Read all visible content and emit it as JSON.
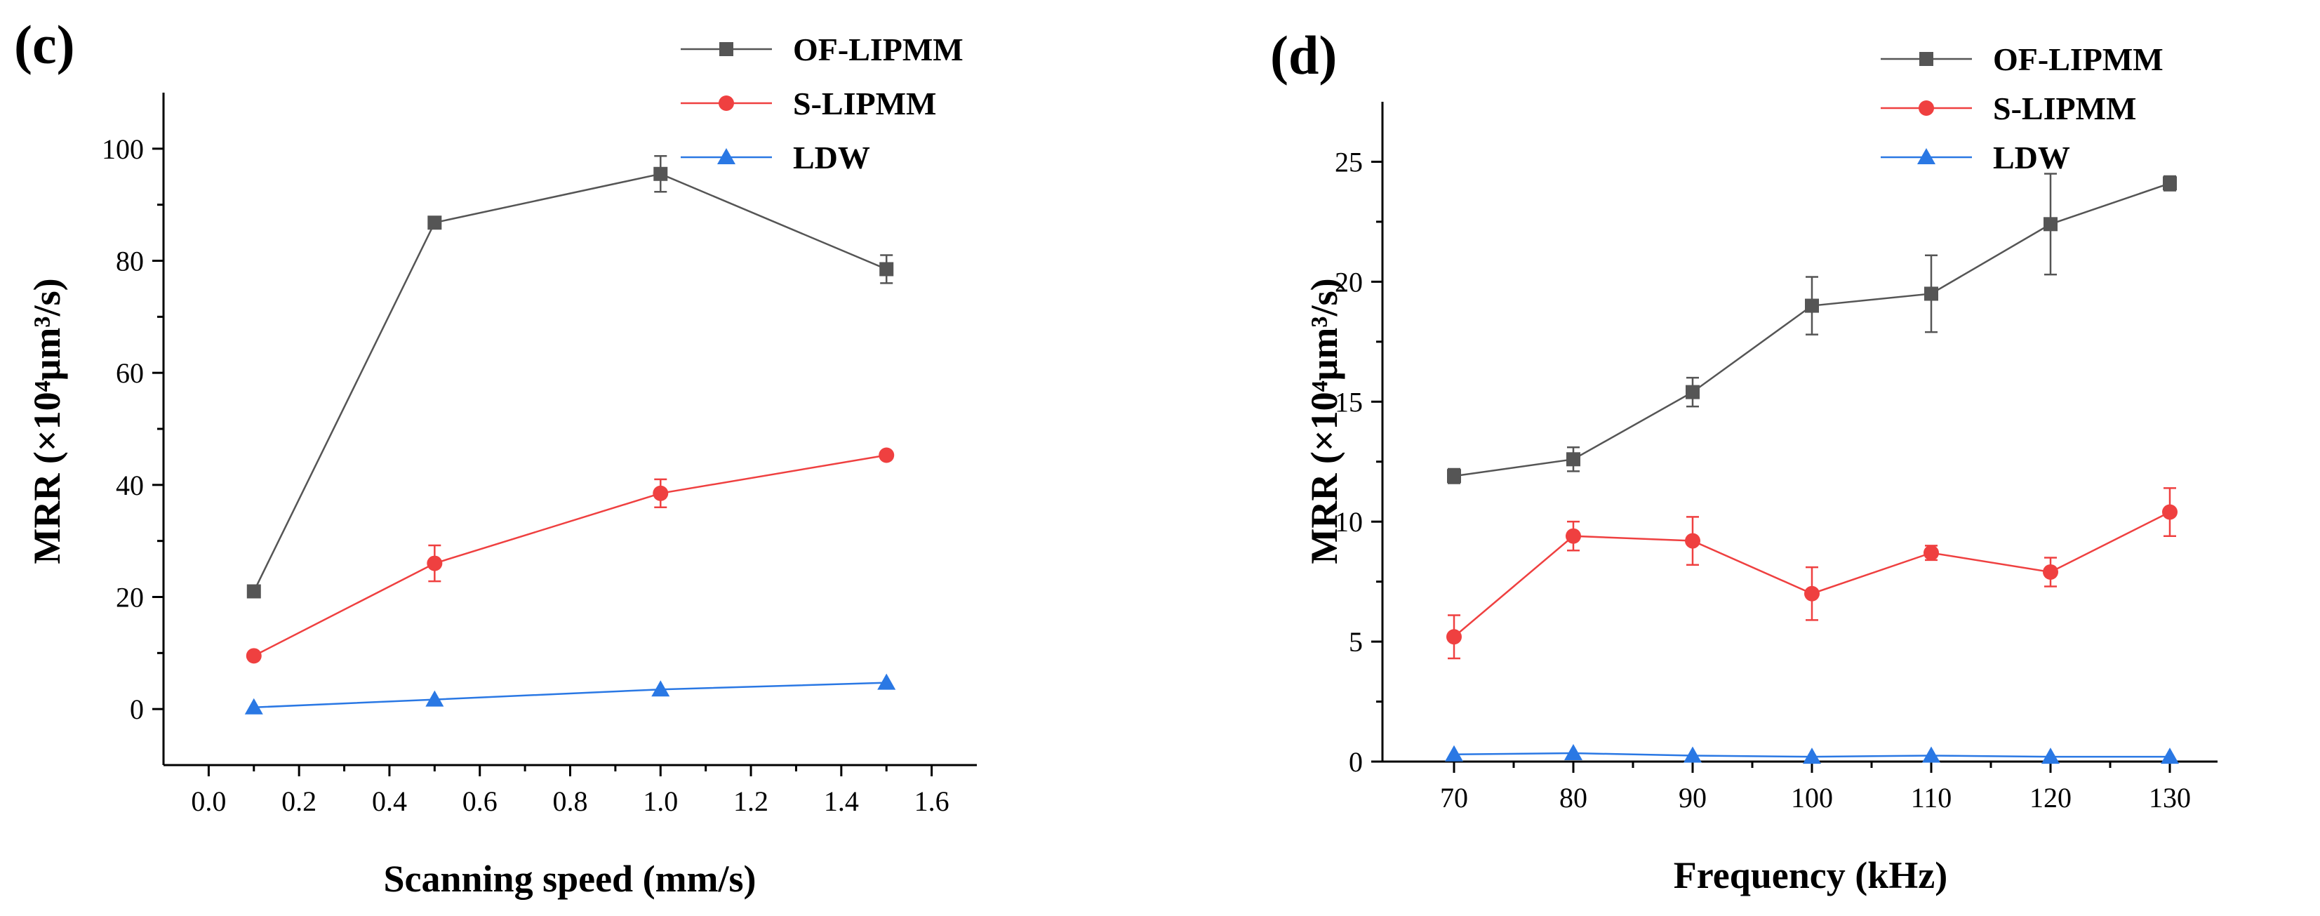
{
  "chart_data": [
    {
      "type": "line",
      "panel_label": "(c)",
      "xlabel": "Scanning speed (mm/s)",
      "ylabel": "MRR (×10⁴μm³/s)",
      "xlim": [
        -0.1,
        1.7
      ],
      "ylim": [
        -10,
        110
      ],
      "xticks": [
        0.0,
        0.2,
        0.4,
        0.6,
        0.8,
        1.0,
        1.2,
        1.4,
        1.6
      ],
      "xtick_labels": [
        "0.0",
        "0.2",
        "0.4",
        "0.6",
        "0.8",
        "1.0",
        "1.2",
        "1.4",
        "1.6"
      ],
      "yticks": [
        0,
        20,
        40,
        60,
        80,
        100
      ],
      "ytick_labels": [
        "0",
        "20",
        "40",
        "60",
        "80",
        "100"
      ],
      "legend_position": "top-right",
      "series": [
        {
          "name": "OF-LIPMM",
          "marker": "square",
          "color": "#555555",
          "x": [
            0.1,
            0.5,
            1.0,
            1.5
          ],
          "y": [
            21,
            86.8,
            95.5,
            78.5
          ],
          "err": [
            0.5,
            1.0,
            3.2,
            2.5
          ]
        },
        {
          "name": "S-LIPMM",
          "marker": "circle",
          "color": "#ef4040",
          "x": [
            0.1,
            0.5,
            1.0,
            1.5
          ],
          "y": [
            9.5,
            26,
            38.5,
            45.3
          ],
          "err": [
            0.5,
            3.2,
            2.5,
            0.5
          ]
        },
        {
          "name": "LDW",
          "marker": "triangle",
          "color": "#2a78e4",
          "x": [
            0.1,
            0.5,
            1.0,
            1.5
          ],
          "y": [
            0.3,
            1.7,
            3.5,
            4.7
          ],
          "err": [
            0,
            0,
            0,
            0
          ]
        }
      ]
    },
    {
      "type": "line",
      "panel_label": "(d)",
      "xlabel": "Frequency (kHz)",
      "ylabel": "MRR (×10⁴μm³/s)",
      "xlim": [
        64,
        134
      ],
      "ylim": [
        0,
        27.5
      ],
      "xticks": [
        70,
        80,
        90,
        100,
        110,
        120,
        130
      ],
      "xtick_labels": [
        "70",
        "80",
        "90",
        "100",
        "110",
        "120",
        "130"
      ],
      "yticks": [
        0,
        5,
        10,
        15,
        20,
        25
      ],
      "ytick_labels": [
        "0",
        "5",
        "10",
        "15",
        "20",
        "25"
      ],
      "legend_position": "top-right",
      "series": [
        {
          "name": "OF-LIPMM",
          "marker": "square",
          "color": "#555555",
          "x": [
            70,
            80,
            90,
            100,
            110,
            120,
            130
          ],
          "y": [
            11.9,
            12.6,
            15.4,
            19.0,
            19.5,
            22.4,
            24.1
          ],
          "err": [
            0.3,
            0.5,
            0.6,
            1.2,
            1.6,
            2.1,
            0.3
          ]
        },
        {
          "name": "S-LIPMM",
          "marker": "circle",
          "color": "#ef4040",
          "x": [
            70,
            80,
            90,
            100,
            110,
            120,
            130
          ],
          "y": [
            5.2,
            9.4,
            9.2,
            7.0,
            8.7,
            7.9,
            10.4
          ],
          "err": [
            0.9,
            0.6,
            1.0,
            1.1,
            0.3,
            0.6,
            1.0
          ]
        },
        {
          "name": "LDW",
          "marker": "triangle",
          "color": "#2a78e4",
          "x": [
            70,
            80,
            90,
            100,
            110,
            120,
            130
          ],
          "y": [
            0.3,
            0.35,
            0.25,
            0.2,
            0.25,
            0.2,
            0.2
          ],
          "err": [
            0,
            0,
            0,
            0,
            0,
            0,
            0
          ]
        }
      ]
    }
  ]
}
